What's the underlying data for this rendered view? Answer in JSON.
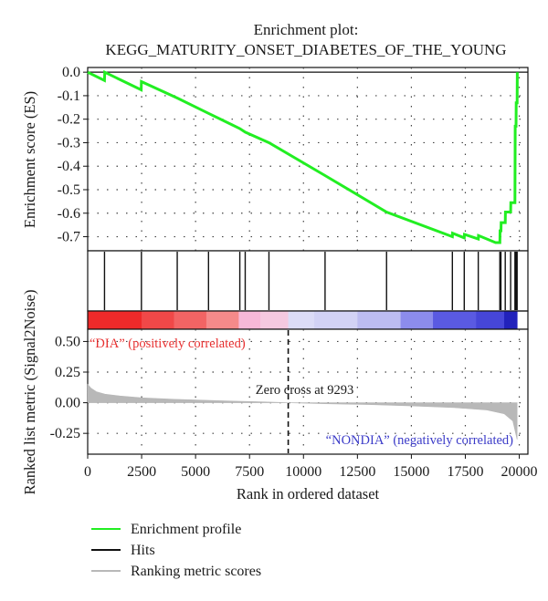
{
  "chart_data": {
    "type": "line",
    "title_line1": "Enrichment plot:",
    "title_line2": "KEGG_MATURITY_ONSET_DIABETES_OF_THE_YOUNG",
    "xlabel": "Rank in ordered dataset",
    "xlim": [
      0,
      20400
    ],
    "xticks": [
      "0",
      "2500",
      "5000",
      "7500",
      "10000",
      "12500",
      "15000",
      "17500",
      "20000"
    ],
    "es_panel": {
      "ylabel": "Enrichment score (ES)",
      "ylim": [
        -0.76,
        0.02
      ],
      "yticks": [
        "0.0",
        "-0.1",
        "-0.2",
        "-0.3",
        "-0.4",
        "-0.5",
        "-0.6",
        "-0.7"
      ],
      "color": "#22ee22",
      "profile": [
        [
          0,
          0.0
        ],
        [
          780,
          -0.035
        ],
        [
          790,
          0.0
        ],
        [
          2480,
          -0.075
        ],
        [
          2490,
          -0.04
        ],
        [
          4150,
          -0.11
        ],
        [
          5600,
          -0.175
        ],
        [
          7050,
          -0.24
        ],
        [
          7300,
          -0.255
        ],
        [
          8400,
          -0.3
        ],
        [
          11000,
          -0.44
        ],
        [
          13850,
          -0.595
        ],
        [
          16900,
          -0.7
        ],
        [
          16910,
          -0.685
        ],
        [
          17450,
          -0.705
        ],
        [
          17460,
          -0.69
        ],
        [
          18100,
          -0.71
        ],
        [
          18110,
          -0.695
        ],
        [
          18900,
          -0.725
        ],
        [
          19100,
          -0.725
        ],
        [
          19110,
          -0.675
        ],
        [
          19150,
          -0.675
        ],
        [
          19160,
          -0.64
        ],
        [
          19350,
          -0.64
        ],
        [
          19360,
          -0.595
        ],
        [
          19600,
          -0.595
        ],
        [
          19610,
          -0.555
        ],
        [
          19800,
          -0.555
        ],
        [
          19810,
          -0.23
        ],
        [
          19850,
          -0.23
        ],
        [
          19860,
          -0.13
        ],
        [
          19900,
          -0.13
        ],
        [
          19910,
          0.0
        ]
      ]
    },
    "hits_panel": {
      "color": "#111111",
      "hits": [
        780,
        2490,
        4150,
        5600,
        7050,
        7300,
        8400,
        11000,
        13850,
        16900,
        17450,
        18100,
        19100,
        19150,
        19350,
        19600,
        19800,
        19850,
        19900
      ]
    },
    "heat_bar": {
      "segments": [
        [
          0,
          2500,
          "#ee2a2a"
        ],
        [
          2500,
          4000,
          "#f04848"
        ],
        [
          4000,
          5500,
          "#f26464"
        ],
        [
          5500,
          7000,
          "#f58a8a"
        ],
        [
          7000,
          8000,
          "#f7b8d8"
        ],
        [
          8000,
          9293,
          "#f5c9e0"
        ],
        [
          9293,
          10500,
          "#dcdcf7"
        ],
        [
          10500,
          12500,
          "#d2d2f5"
        ],
        [
          12500,
          14500,
          "#bcbcf1"
        ],
        [
          14500,
          16000,
          "#8c8cec"
        ],
        [
          16000,
          18000,
          "#5a5ae2"
        ],
        [
          18000,
          19300,
          "#4646d8"
        ],
        [
          19300,
          19900,
          "#2222bb"
        ]
      ]
    },
    "metric_panel": {
      "ylabel": "Ranked list metric (Signal2Noise)",
      "ylim": [
        -0.42,
        0.6
      ],
      "yticks": [
        "0.50",
        "0.25",
        "0.00",
        "-0.25"
      ],
      "color": "#b8b8b8",
      "profile": [
        [
          0,
          0.15
        ],
        [
          150,
          0.12
        ],
        [
          400,
          0.09
        ],
        [
          800,
          0.07
        ],
        [
          1500,
          0.055
        ],
        [
          2500,
          0.04
        ],
        [
          4000,
          0.028
        ],
        [
          6000,
          0.017
        ],
        [
          8000,
          0.007
        ],
        [
          9293,
          0.0
        ],
        [
          11000,
          -0.008
        ],
        [
          13000,
          -0.015
        ],
        [
          15000,
          -0.026
        ],
        [
          17000,
          -0.04
        ],
        [
          18500,
          -0.06
        ],
        [
          19300,
          -0.09
        ],
        [
          19700,
          -0.15
        ],
        [
          19900,
          -0.3
        ]
      ],
      "zero_cross_rank": 9293,
      "zero_cross_label": "Zero cross at 9293",
      "pos_label": "“DIA” (positively correlated)",
      "pos_color": "#e83030",
      "neg_label": "“NONDIA” (negatively correlated)",
      "neg_color": "#3a3ac8"
    },
    "legend": [
      {
        "label": "Enrichment profile",
        "color": "#22ee22"
      },
      {
        "label": "Hits",
        "color": "#111111"
      },
      {
        "label": "Ranking metric scores",
        "color": "#b8b8b8"
      }
    ]
  }
}
